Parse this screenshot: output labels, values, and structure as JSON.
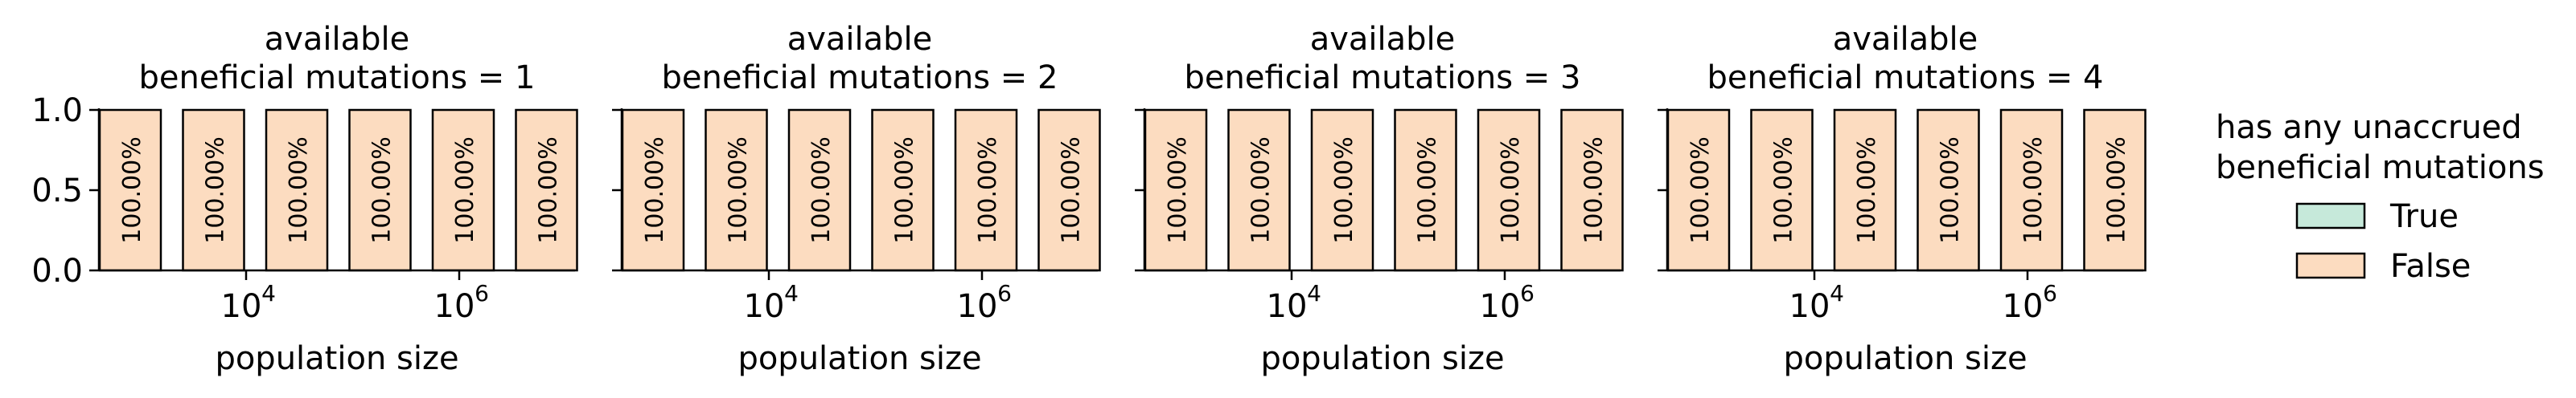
{
  "chart_data": [
    {
      "type": "bar",
      "title_line1": "available",
      "title_line2": "beneficial mutations = 1",
      "xlabel": "population size",
      "ylim": [
        0,
        1
      ],
      "yticks": [
        "0.0",
        "0.5",
        "1.0"
      ],
      "xticks": [
        {
          "base": "10",
          "exp": "4"
        },
        {
          "base": "10",
          "exp": "6"
        }
      ],
      "xscale": "log",
      "series": [
        {
          "name": "True",
          "values": [
            0,
            0,
            0,
            0,
            0,
            0
          ]
        },
        {
          "name": "False",
          "values": [
            1,
            1,
            1,
            1,
            1,
            1
          ]
        }
      ],
      "bar_labels": [
        "100.00%",
        "100.00%",
        "100.00%",
        "100.00%",
        "100.00%",
        "100.00%"
      ]
    },
    {
      "type": "bar",
      "title_line1": "available",
      "title_line2": "beneficial mutations = 2",
      "xlabel": "population size",
      "ylim": [
        0,
        1
      ],
      "xticks": [
        {
          "base": "10",
          "exp": "4"
        },
        {
          "base": "10",
          "exp": "6"
        }
      ],
      "xscale": "log",
      "series": [
        {
          "name": "True",
          "values": [
            0,
            0,
            0,
            0,
            0,
            0
          ]
        },
        {
          "name": "False",
          "values": [
            1,
            1,
            1,
            1,
            1,
            1
          ]
        }
      ],
      "bar_labels": [
        "100.00%",
        "100.00%",
        "100.00%",
        "100.00%",
        "100.00%",
        "100.00%"
      ]
    },
    {
      "type": "bar",
      "title_line1": "available",
      "title_line2": "beneficial mutations = 3",
      "xlabel": "population size",
      "ylim": [
        0,
        1
      ],
      "xticks": [
        {
          "base": "10",
          "exp": "4"
        },
        {
          "base": "10",
          "exp": "6"
        }
      ],
      "xscale": "log",
      "series": [
        {
          "name": "True",
          "values": [
            0,
            0,
            0,
            0,
            0,
            0
          ]
        },
        {
          "name": "False",
          "values": [
            1,
            1,
            1,
            1,
            1,
            1
          ]
        }
      ],
      "bar_labels": [
        "100.00%",
        "100.00%",
        "100.00%",
        "100.00%",
        "100.00%",
        "100.00%"
      ]
    },
    {
      "type": "bar",
      "title_line1": "available",
      "title_line2": "beneficial mutations = 4",
      "xlabel": "population size",
      "ylim": [
        0,
        1
      ],
      "xticks": [
        {
          "base": "10",
          "exp": "4"
        },
        {
          "base": "10",
          "exp": "6"
        }
      ],
      "xscale": "log",
      "series": [
        {
          "name": "True",
          "values": [
            0,
            0,
            0,
            0,
            0,
            0
          ]
        },
        {
          "name": "False",
          "values": [
            1,
            1,
            1,
            1,
            1,
            1
          ]
        }
      ],
      "bar_labels": [
        "100.00%",
        "100.00%",
        "100.00%",
        "100.00%",
        "100.00%",
        "100.00%"
      ]
    }
  ],
  "legend": {
    "title_line1": "has any unaccrued",
    "title_line2": "beneficial mutations",
    "placement": "right",
    "items": [
      {
        "label": "True",
        "color": "#c6e9da"
      },
      {
        "label": "False",
        "color": "#fcdcc0"
      }
    ]
  },
  "colors": {
    "true": "#c6e9da",
    "false": "#fcdcc0",
    "edge": "#000000"
  }
}
